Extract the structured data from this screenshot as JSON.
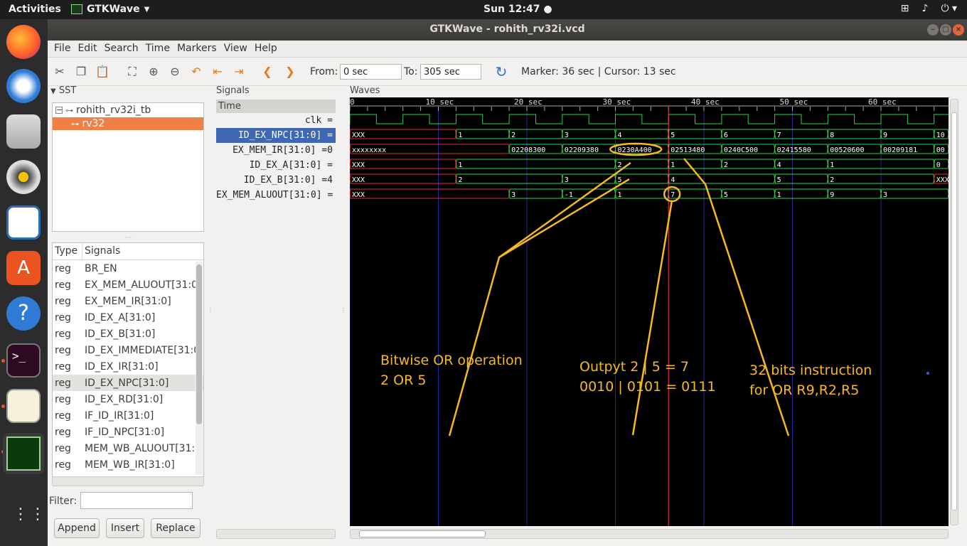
{
  "topbar": {
    "activities": "Activities",
    "app_name": "GTKWave",
    "clock": "Sun 12:47 ●"
  },
  "window": {
    "title": "GTKWave - rohith_rv32i.vcd"
  },
  "menu": [
    "File",
    "Edit",
    "Search",
    "Time",
    "Markers",
    "View",
    "Help"
  ],
  "toolbar": {
    "from_label": "From:",
    "from_value": "0 sec",
    "to_label": "To:",
    "to_value": "305 sec",
    "marker_text": "Marker: 36 sec  |  Cursor: 13 sec"
  },
  "sst": {
    "label": "SST",
    "tree_root": "rohith_rv32i_tb",
    "tree_child": "rv32",
    "col_type": "Type",
    "col_signals": "Signals",
    "rows": [
      {
        "type": "reg",
        "name": "BR_EN"
      },
      {
        "type": "reg",
        "name": "EX_MEM_ALUOUT[31:0"
      },
      {
        "type": "reg",
        "name": "EX_MEM_IR[31:0]"
      },
      {
        "type": "reg",
        "name": "ID_EX_A[31:0]"
      },
      {
        "type": "reg",
        "name": "ID_EX_B[31:0]"
      },
      {
        "type": "reg",
        "name": "ID_EX_IMMEDIATE[31:0"
      },
      {
        "type": "reg",
        "name": "ID_EX_IR[31:0]"
      },
      {
        "type": "reg",
        "name": "ID_EX_NPC[31:0]"
      },
      {
        "type": "reg",
        "name": "ID_EX_RD[31:0]"
      },
      {
        "type": "reg",
        "name": "IF_ID_IR[31:0]"
      },
      {
        "type": "reg",
        "name": "IF_ID_NPC[31:0]"
      },
      {
        "type": "reg",
        "name": "MEM_WB_ALUOUT[31:"
      },
      {
        "type": "reg",
        "name": "MEM_WB_IR[31:0]"
      }
    ],
    "filter_label": "Filter:",
    "filter_value": "",
    "append": "Append",
    "insert": "Insert",
    "replace": "Replace"
  },
  "signals": {
    "label": "Signals",
    "header": "Time",
    "rows": [
      "clk =",
      "ID_EX_NPC[31:0] =",
      "EX_MEM_IR[31:0] =0",
      "ID_EX_A[31:0] =",
      "ID_EX_B[31:0] =4",
      "EX_MEM_ALUOUT[31:0] ="
    ]
  },
  "waves": {
    "label": "Waves",
    "ticks": [
      "0",
      "10 sec",
      "20 sec",
      "30 sec",
      "40 sec",
      "50 sec",
      "60 sec"
    ],
    "tick_times": [
      0,
      10,
      20,
      30,
      40,
      50,
      60
    ],
    "time_span": [
      0,
      67.5
    ],
    "marker_time": 36,
    "clk_period": 6,
    "buses": [
      {
        "name": "ID_EX_NPC",
        "segments": [
          {
            "t": 0,
            "v": "XXX",
            "x": true
          },
          {
            "t": 12,
            "v": "1"
          },
          {
            "t": 18,
            "v": "2"
          },
          {
            "t": 24,
            "v": "3"
          },
          {
            "t": 30,
            "v": "4"
          },
          {
            "t": 36,
            "v": "5"
          },
          {
            "t": 42,
            "v": "6"
          },
          {
            "t": 48,
            "v": "7"
          },
          {
            "t": 54,
            "v": "8"
          },
          {
            "t": 60,
            "v": "9"
          },
          {
            "t": 66,
            "v": "10"
          }
        ]
      },
      {
        "name": "EX_MEM_IR",
        "segments": [
          {
            "t": 0,
            "v": "xxxxxxxx",
            "x": true
          },
          {
            "t": 18,
            "v": "02208300"
          },
          {
            "t": 24,
            "v": "02209380"
          },
          {
            "t": 30,
            "v": "0230A400"
          },
          {
            "t": 36,
            "v": "02513480"
          },
          {
            "t": 42,
            "v": "0240C500"
          },
          {
            "t": 48,
            "v": "02415580"
          },
          {
            "t": 54,
            "v": "00520600"
          },
          {
            "t": 60,
            "v": "00209181"
          },
          {
            "t": 66,
            "v": "00"
          }
        ]
      },
      {
        "name": "ID_EX_A",
        "segments": [
          {
            "t": 0,
            "v": "XXX",
            "x": true
          },
          {
            "t": 12,
            "v": "1"
          },
          {
            "t": 30,
            "v": "2"
          },
          {
            "t": 36,
            "v": "1"
          },
          {
            "t": 42,
            "v": "2"
          },
          {
            "t": 48,
            "v": "4"
          },
          {
            "t": 54,
            "v": "1"
          },
          {
            "t": 66,
            "v": "0"
          }
        ]
      },
      {
        "name": "ID_EX_B",
        "segments": [
          {
            "t": 0,
            "v": "XXX",
            "x": true
          },
          {
            "t": 12,
            "v": "2"
          },
          {
            "t": 24,
            "v": "3"
          },
          {
            "t": 30,
            "v": "5"
          },
          {
            "t": 36,
            "v": "4"
          },
          {
            "t": 48,
            "v": "5"
          },
          {
            "t": 54,
            "v": "2"
          },
          {
            "t": 66,
            "v": "XXX",
            "x": true
          }
        ]
      },
      {
        "name": "EX_MEM_ALUOUT",
        "segments": [
          {
            "t": 0,
            "v": "XXX",
            "x": true
          },
          {
            "t": 18,
            "v": "3"
          },
          {
            "t": 24,
            "v": "-1"
          },
          {
            "t": 30,
            "v": "1"
          },
          {
            "t": 36,
            "v": "7"
          },
          {
            "t": 42,
            "v": "5"
          },
          {
            "t": 48,
            "v": "1"
          },
          {
            "t": 54,
            "v": "9"
          },
          {
            "t": 60,
            "v": "3"
          }
        ]
      }
    ],
    "annotations": {
      "or_line1": "Bitwise OR operation",
      "or_line2": "2 OR 5",
      "out_line1": "Outpyt 2 | 5 = 7",
      "out_line2": "0010 | 0101 = 0111",
      "instr_line1": "32 bits instruction",
      "instr_line2": "for OR R9,R2,R5",
      "color": "#f5b921"
    }
  },
  "colors": {
    "wave_green": "#2fd14c",
    "wave_red": "#e03030",
    "selected": "#3f67b3",
    "sst_selected": "#f08046",
    "marker": "#ff3b3b",
    "grid": "#1f2a8c"
  }
}
